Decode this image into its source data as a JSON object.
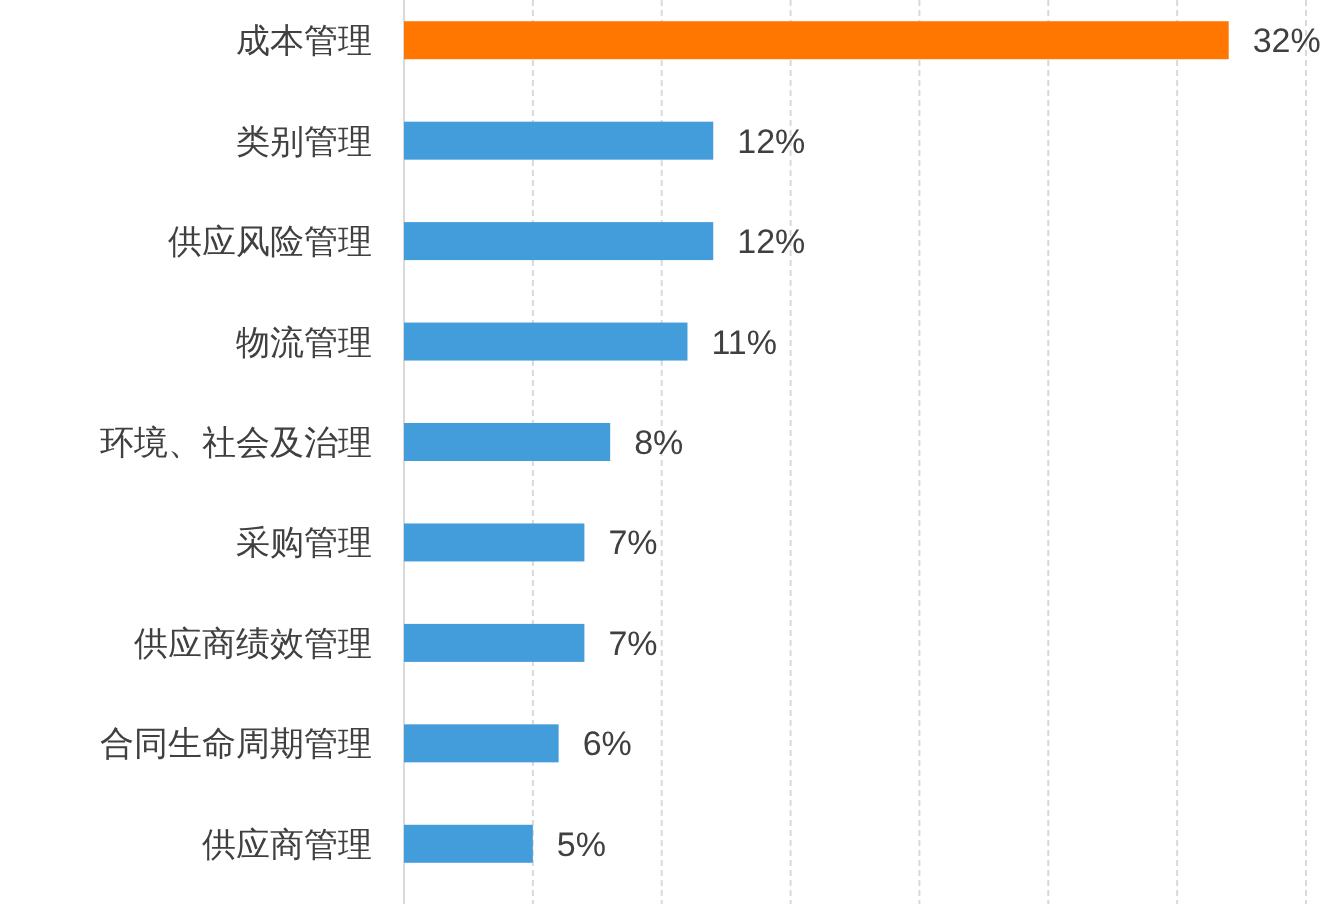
{
  "chart_data": {
    "type": "bar",
    "orientation": "horizontal",
    "categories": [
      "成本管理",
      "类别管理",
      "供应风险管理",
      "物流管理",
      "环境、社会及治理",
      "采购管理",
      "供应商绩效管理",
      "合同生命周期管理",
      "供应商管理"
    ],
    "values": [
      32,
      12,
      12,
      11,
      8,
      7,
      7,
      6,
      5
    ],
    "colors": [
      "#ff7700",
      "#449ddb",
      "#449ddb",
      "#449ddb",
      "#449ddb",
      "#449ddb",
      "#449ddb",
      "#449ddb",
      "#449ddb"
    ],
    "value_labels": [
      "32%",
      "12%",
      "12%",
      "11%",
      "8%",
      "7%",
      "7%",
      "6%",
      "5%"
    ],
    "xlim": [
      0,
      35
    ],
    "xticks": [
      {
        "value": 0,
        "label": null
      },
      {
        "value": 5,
        "label": null
      },
      {
        "value": 10,
        "label": null
      },
      {
        "value": 15,
        "label": null
      },
      {
        "value": 20,
        "label": null
      },
      {
        "value": 25,
        "label": null
      },
      {
        "value": 30,
        "label": null
      },
      {
        "value": 35,
        "label": null
      }
    ],
    "grid": "x",
    "tick_labels": "y"
  }
}
